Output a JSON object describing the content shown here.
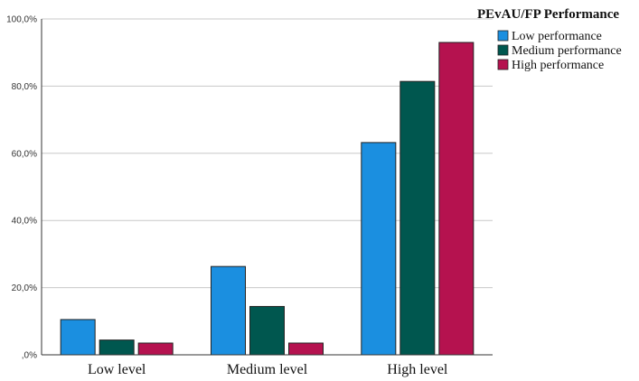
{
  "chart_data": {
    "type": "bar",
    "legend_title": "PEvAU/FP Performance",
    "legend_position": "top-right",
    "categories": [
      "Low level",
      "Medium level",
      "High level"
    ],
    "series": [
      {
        "name": "Low performance",
        "color": "#1B8FE0",
        "values": [
          10.5,
          26.3,
          63.2
        ]
      },
      {
        "name": "Medium performance",
        "color": "#00574F",
        "values": [
          4.4,
          14.4,
          81.4
        ]
      },
      {
        "name": "High performance",
        "color": "#B5124F",
        "values": [
          3.5,
          3.5,
          93.0
        ]
      }
    ],
    "ylim": [
      0,
      100
    ],
    "yticks": [
      0,
      20,
      40,
      60,
      80,
      100
    ],
    "ytick_labels": [
      ",0%",
      "20,0%",
      "40,0%",
      "60,0%",
      "80,0%",
      "100,0%"
    ],
    "grid": true,
    "xlabel": "",
    "ylabel": ""
  }
}
